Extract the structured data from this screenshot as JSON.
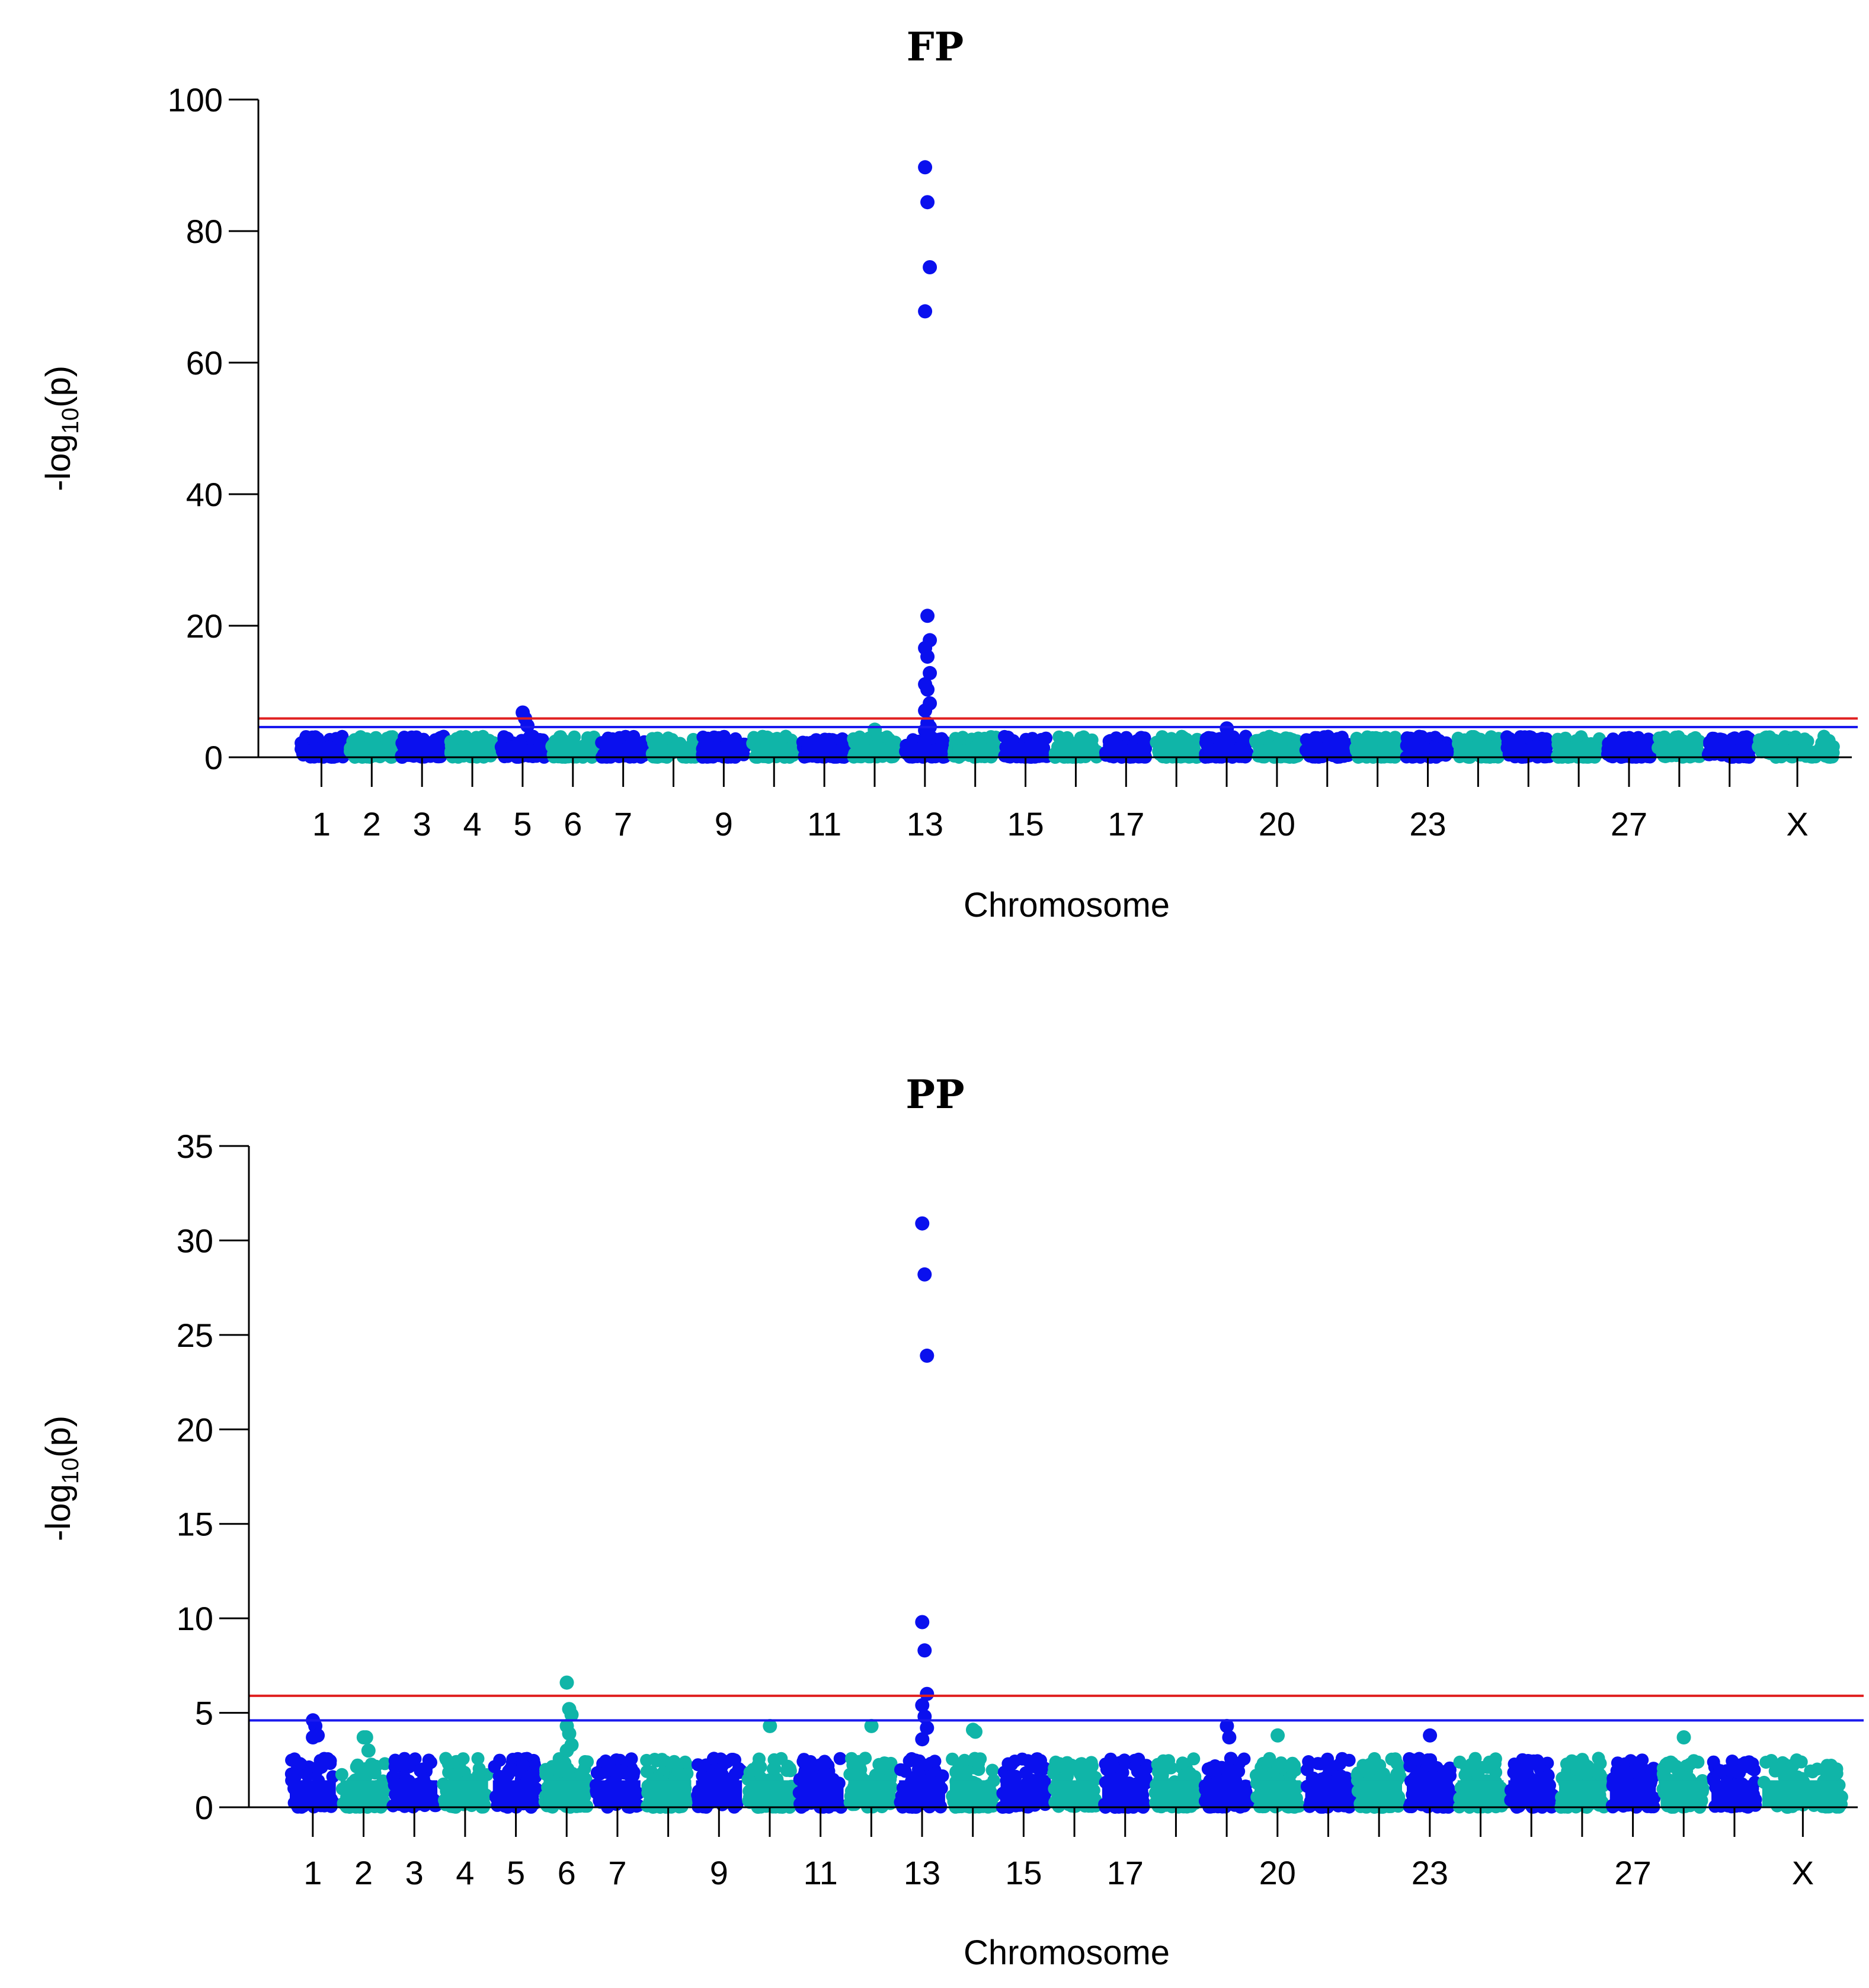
{
  "colors": {
    "odd": "#0a10ee",
    "even": "#10b5a8",
    "suggestive_line": "#1a1aee",
    "genomewide_line": "#e02020"
  },
  "chart_data": [
    {
      "type": "scatter",
      "title": "FP",
      "xlabel": "Chromosome",
      "ylabel_main": "-log",
      "ylabel_sub": "10",
      "ylabel_tail": "(p)",
      "ylim": [
        0,
        100
      ],
      "yticks": [
        "0",
        "20",
        "40",
        "60",
        "80",
        "100"
      ],
      "ytick_values": [
        0,
        20,
        40,
        60,
        80,
        100
      ],
      "chromosome_labels": [
        "1",
        "2",
        "3",
        "4",
        "5",
        "6",
        "7",
        "9",
        "11",
        "13",
        "15",
        "17",
        "20",
        "23",
        "27",
        "X"
      ],
      "thresholds": {
        "genomewide": 5.9,
        "suggestive": 4.6
      },
      "baseline_max": 3.2,
      "peaks": [
        {
          "chromosome": "5",
          "values": [
            6.8,
            5.9,
            4.8
          ]
        },
        {
          "chromosome": "13",
          "values": [
            89.7,
            84.4,
            74.5,
            67.8,
            21.5,
            17.8,
            16.6,
            15.3,
            12.8,
            11.1,
            10.3,
            8.2,
            7.1,
            5.2,
            4.6,
            4.1,
            3.6
          ]
        },
        {
          "chromosome": "12",
          "values": [
            4.2
          ]
        },
        {
          "chromosome": "19",
          "values": [
            4.4
          ]
        }
      ]
    },
    {
      "type": "scatter",
      "title": "PP",
      "xlabel": "Chromosome",
      "ylabel_main": "-log",
      "ylabel_sub": "10",
      "ylabel_tail": "(p)",
      "ylim": [
        0,
        35
      ],
      "yticks": [
        "0",
        "5",
        "10",
        "15",
        "20",
        "25",
        "30",
        "35"
      ],
      "ytick_values": [
        0,
        5,
        10,
        15,
        20,
        25,
        30,
        35
      ],
      "chromosome_labels": [
        "1",
        "2",
        "3",
        "4",
        "5",
        "6",
        "7",
        "9",
        "11",
        "13",
        "15",
        "17",
        "20",
        "23",
        "27",
        "X"
      ],
      "thresholds": {
        "genomewide": 5.9,
        "suggestive": 4.6
      },
      "baseline_max": 2.6,
      "peaks": [
        {
          "chromosome": "1",
          "values": [
            4.6,
            4.3,
            3.8,
            3.7
          ]
        },
        {
          "chromosome": "2",
          "values": [
            3.7,
            3.7,
            3.0
          ]
        },
        {
          "chromosome": "6",
          "values": [
            6.6,
            5.2,
            4.9,
            4.3,
            3.9,
            3.3,
            3.0
          ]
        },
        {
          "chromosome": "10",
          "values": [
            4.3
          ]
        },
        {
          "chromosome": "12",
          "values": [
            4.3
          ]
        },
        {
          "chromosome": "13",
          "values": [
            30.9,
            28.2,
            23.9,
            9.8,
            8.3,
            6.0,
            5.4,
            4.8,
            4.2,
            3.6
          ]
        },
        {
          "chromosome": "14",
          "values": [
            4.1,
            4.0
          ]
        },
        {
          "chromosome": "19",
          "values": [
            4.3,
            3.7
          ]
        },
        {
          "chromosome": "20",
          "values": [
            3.8
          ]
        },
        {
          "chromosome": "23",
          "values": [
            3.8
          ]
        },
        {
          "chromosome": "28",
          "values": [
            3.7
          ]
        }
      ]
    }
  ]
}
